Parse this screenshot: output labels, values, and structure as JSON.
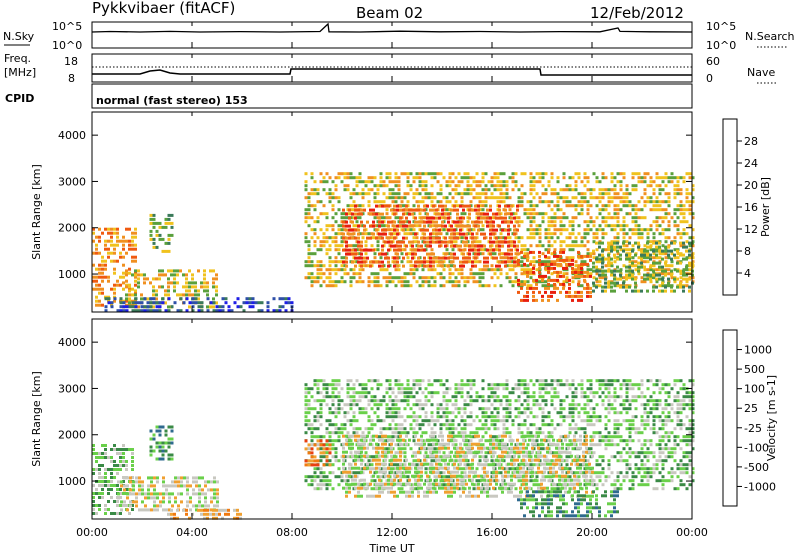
{
  "header": {
    "radar": "Pykkvibaer (fitACF)",
    "beam": "Beam 02",
    "date": "12/Feb/2012"
  },
  "noise_panel": {
    "left_label": "N.Sky",
    "right_label": "N.Search",
    "left_ticks": [
      "10^5",
      "10^0"
    ],
    "right_ticks": [
      "10^5",
      "10^0"
    ]
  },
  "freq_panel": {
    "left_label_1": "Freq.",
    "left_label_2": "[MHz]",
    "right_label": "Nave",
    "left_ticks": [
      "18",
      "8"
    ],
    "right_ticks": [
      "60",
      "0"
    ]
  },
  "cpid": {
    "label": "CPID",
    "text": "normal (fast stereo) 153"
  },
  "xaxis": {
    "label": "Time UT",
    "ticks": [
      "00:00",
      "04:00",
      "08:00",
      "12:00",
      "16:00",
      "20:00",
      "00:00"
    ]
  },
  "chart_data": [
    {
      "type": "heatmap",
      "panel": "power",
      "ylabel": "Slant Range [km]",
      "yticks": [
        1000,
        2000,
        3000,
        4000
      ],
      "ylim": [
        180,
        4500
      ],
      "xlim_hours": [
        0,
        24
      ],
      "colorbar_label": "Power [dB]",
      "colorbar_ticks": [
        "4",
        "8",
        "12",
        "16",
        "20",
        "24",
        "28"
      ],
      "colorbar_colors": [
        "#1e1ee6",
        "#2e4fa8",
        "#3a7a5a",
        "#5aa03c",
        "#f0c21e",
        "#f09020",
        "#f05a10",
        "#e81e0e"
      ],
      "bands": [
        {
          "x0": 0.0,
          "x1": 1.8,
          "y0": 300,
          "y1": 2000,
          "level": 5
        },
        {
          "x0": 1.2,
          "x1": 5.0,
          "y0": 250,
          "y1": 1100,
          "level": 4
        },
        {
          "x0": 2.3,
          "x1": 3.2,
          "y0": 1500,
          "y1": 2300,
          "level": 3
        },
        {
          "x0": 0.5,
          "x1": 8.0,
          "y0": 200,
          "y1": 500,
          "level": 1
        },
        {
          "x0": 8.5,
          "x1": 24.0,
          "y0": 700,
          "y1": 3200,
          "level": 4
        },
        {
          "x0": 10.0,
          "x1": 17.0,
          "y0": 1200,
          "y1": 2500,
          "level": 6
        },
        {
          "x0": 17.0,
          "x1": 20.0,
          "y0": 400,
          "y1": 1500,
          "level": 6
        },
        {
          "x0": 20.0,
          "x1": 24.0,
          "y0": 600,
          "y1": 1700,
          "level": 3
        }
      ]
    },
    {
      "type": "heatmap",
      "panel": "velocity",
      "ylabel": "Slant Range [km]",
      "yticks": [
        1000,
        2000,
        3000,
        4000
      ],
      "ylim": [
        180,
        4500
      ],
      "xlim_hours": [
        0,
        24
      ],
      "colorbar_label": "Velocity [m s-1]",
      "colorbar_ticks": [
        "1000",
        "500",
        "100",
        "25",
        "-25",
        "-100",
        "-500",
        "-1000"
      ],
      "colorbar_colors": [
        "#1e3ca8",
        "#2e6a8e",
        "#3a8a46",
        "#6ad04a",
        "#c8c8c0",
        "#f0a030",
        "#f07a10",
        "#e84010",
        "#e81010"
      ],
      "bands": [
        {
          "x0": 0.0,
          "x1": 1.6,
          "y0": 300,
          "y1": 1800,
          "level": 3
        },
        {
          "x0": 2.3,
          "x1": 3.2,
          "y0": 1500,
          "y1": 2200,
          "level": 2
        },
        {
          "x0": 1.0,
          "x1": 5.0,
          "y0": 400,
          "y1": 1100,
          "level": 4
        },
        {
          "x0": 3.0,
          "x1": 6.0,
          "y0": 200,
          "y1": 400,
          "level": 5
        },
        {
          "x0": 8.5,
          "x1": 24.0,
          "y0": 800,
          "y1": 3200,
          "level": 3
        },
        {
          "x0": 10.0,
          "x1": 20.0,
          "y0": 700,
          "y1": 2000,
          "level": 4
        },
        {
          "x0": 17.0,
          "x1": 21.0,
          "y0": 200,
          "y1": 800,
          "level": 2
        },
        {
          "x0": 8.5,
          "x1": 9.5,
          "y0": 1300,
          "y1": 1900,
          "level": 6
        }
      ]
    }
  ]
}
